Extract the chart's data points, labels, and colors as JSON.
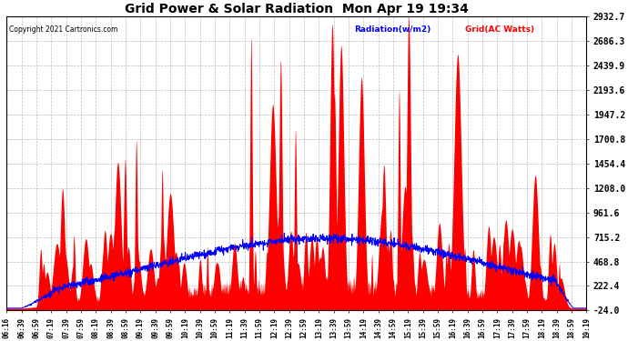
{
  "title": "Grid Power & Solar Radiation  Mon Apr 19 19:34",
  "copyright": "Copyright 2021 Cartronics.com",
  "legend_radiation": "Radiation(w/m2)",
  "legend_grid": "Grid(AC Watts)",
  "y_ticks": [
    -24.0,
    222.4,
    468.8,
    715.2,
    961.6,
    1208.0,
    1454.4,
    1700.8,
    1947.2,
    2193.6,
    2439.9,
    2686.3,
    2932.7
  ],
  "x_tick_labels": [
    "06:16",
    "06:39",
    "06:59",
    "07:19",
    "07:39",
    "07:59",
    "08:19",
    "08:39",
    "08:59",
    "09:19",
    "09:39",
    "09:59",
    "10:19",
    "10:39",
    "10:59",
    "11:19",
    "11:39",
    "11:59",
    "12:19",
    "12:39",
    "12:59",
    "13:19",
    "13:39",
    "13:59",
    "14:19",
    "14:39",
    "14:59",
    "15:19",
    "15:39",
    "15:59",
    "16:19",
    "16:39",
    "16:59",
    "17:19",
    "17:39",
    "17:59",
    "18:19",
    "18:39",
    "18:59",
    "19:19"
  ],
  "ymin": -24.0,
  "ymax": 2932.7,
  "background_color": "#ffffff",
  "plot_bg_color": "#ffffff",
  "grid_color": "#aaaaaa",
  "fill_color": "#ff0000",
  "line_color": "#0000ff",
  "title_color": "#000000",
  "copyright_color": "#000000",
  "radiation_label_color": "#0000ff",
  "grid_label_color": "#ff0000"
}
